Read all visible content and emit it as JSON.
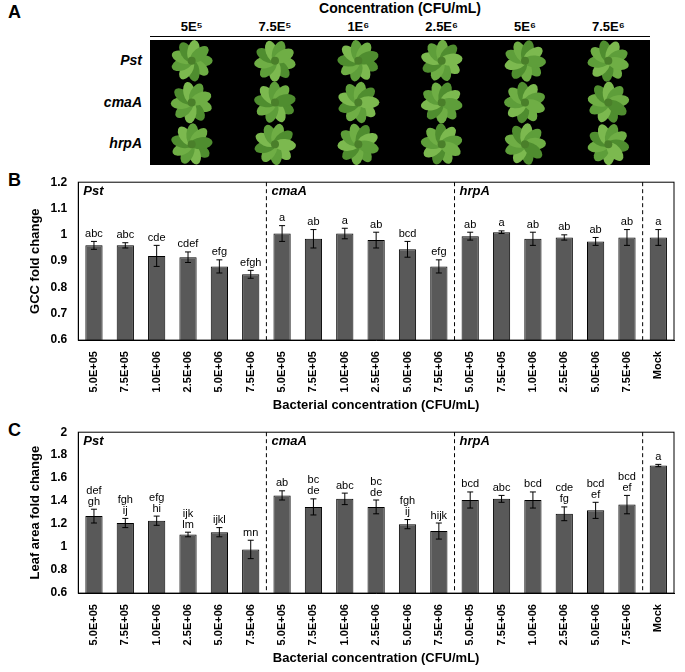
{
  "photo_panel": {
    "panel": "A",
    "title": "Concentration (CFU/mL)",
    "columns": [
      "5E⁵",
      "7.5E⁵",
      "1E⁶",
      "2.5E⁶",
      "5E⁶",
      "7.5E⁶"
    ],
    "rows": [
      "Pst",
      "cmaA",
      "hrpA"
    ]
  },
  "chart_data": [
    {
      "panel": "B",
      "type": "bar",
      "y_label": "GCC fold change",
      "x_label": "Bacterial concentration (CFU/mL)",
      "categories": [
        "5.0E+05",
        "7.5E+05",
        "1.0E+06",
        "2.5E+06",
        "5.0E+06",
        "7.5E+06",
        "5.0E+05",
        "7.5E+05",
        "1.0E+06",
        "2.5E+06",
        "5.0E+06",
        "7.5E+06",
        "5.0E+05",
        "7.5E+05",
        "1.0E+06",
        "2.5E+06",
        "5.0E+06",
        "7.5E+06",
        "Mock"
      ],
      "groups": [
        {
          "name": "Pst",
          "size": 6
        },
        {
          "name": "cmaA",
          "size": 6
        },
        {
          "name": "hrpA",
          "size": 6
        }
      ],
      "values": [
        0.96,
        0.96,
        0.92,
        0.915,
        0.88,
        0.85,
        1.005,
        0.985,
        1.005,
        0.98,
        0.945,
        0.88,
        0.995,
        1.01,
        0.985,
        0.99,
        0.975,
        0.99,
        0.99
      ],
      "errors": [
        0.015,
        0.01,
        0.04,
        0.02,
        0.025,
        0.015,
        0.03,
        0.035,
        0.02,
        0.03,
        0.03,
        0.025,
        0.015,
        0.005,
        0.025,
        0.01,
        0.015,
        0.03,
        0.03
      ],
      "annotations": [
        [
          "abc"
        ],
        [
          "abc"
        ],
        [
          "cde"
        ],
        [
          "cdef"
        ],
        [
          "efg"
        ],
        [
          "efgh"
        ],
        [
          "a"
        ],
        [
          "ab"
        ],
        [
          "a"
        ],
        [
          "ab"
        ],
        [
          "bcd"
        ],
        [
          "efg"
        ],
        [
          "ab"
        ],
        [
          "a"
        ],
        [
          "ab"
        ],
        [
          "ab"
        ],
        [
          "ab"
        ],
        [
          "ab"
        ],
        [
          "a"
        ]
      ],
      "color": "#595959",
      "ylim": [
        0.6,
        1.2
      ],
      "yticks": [
        0.6,
        0.7,
        0.8,
        0.9,
        1,
        1.1,
        1.2
      ],
      "grid": false
    },
    {
      "panel": "C",
      "type": "bar",
      "y_label": "Leaf area fold change",
      "x_label": "Bacterial concentration (CFU/mL)",
      "categories": [
        "5.0E+05",
        "7.5E+05",
        "1.0E+06",
        "2.5E+06",
        "5.0E+06",
        "7.5E+06",
        "5.0E+05",
        "7.5E+05",
        "1.0E+06",
        "2.5E+06",
        "5.0E+06",
        "7.5E+06",
        "5.0E+05",
        "7.5E+05",
        "1.0E+06",
        "2.5E+06",
        "5.0E+06",
        "7.5E+06",
        "Mock"
      ],
      "groups": [
        {
          "name": "Pst",
          "size": 6
        },
        {
          "name": "cmaA",
          "size": 6
        },
        {
          "name": "hrpA",
          "size": 6
        }
      ],
      "values": [
        1.27,
        1.21,
        1.23,
        1.11,
        1.13,
        0.98,
        1.45,
        1.35,
        1.42,
        1.35,
        1.2,
        1.14,
        1.41,
        1.42,
        1.41,
        1.29,
        1.32,
        1.37,
        1.71
      ],
      "errors": [
        0.06,
        0.04,
        0.04,
        0.02,
        0.04,
        0.08,
        0.04,
        0.07,
        0.05,
        0.06,
        0.04,
        0.07,
        0.07,
        0.03,
        0.07,
        0.06,
        0.07,
        0.08,
        0.01
      ],
      "annotations": [
        [
          "def",
          "gh"
        ],
        [
          "fgh",
          "ij"
        ],
        [
          "efg",
          "hi"
        ],
        [
          "ijk",
          "lm"
        ],
        [
          "ijkl"
        ],
        [
          "mn"
        ],
        [
          "ab"
        ],
        [
          "bc",
          "de"
        ],
        [
          "abc"
        ],
        [
          "bc",
          "de"
        ],
        [
          "fgh",
          "ij"
        ],
        [
          "hijk"
        ],
        [
          "bcd"
        ],
        [
          "abc"
        ],
        [
          "bcd"
        ],
        [
          "cde",
          "fg"
        ],
        [
          "bcd",
          "ef"
        ],
        [
          "bcd",
          "ef"
        ],
        [
          "a"
        ]
      ],
      "color": "#595959",
      "ylim": [
        0.6,
        2
      ],
      "yticks": [
        0.6,
        0.8,
        1,
        1.2,
        1.4,
        1.6,
        1.8,
        2
      ],
      "grid": false
    }
  ]
}
